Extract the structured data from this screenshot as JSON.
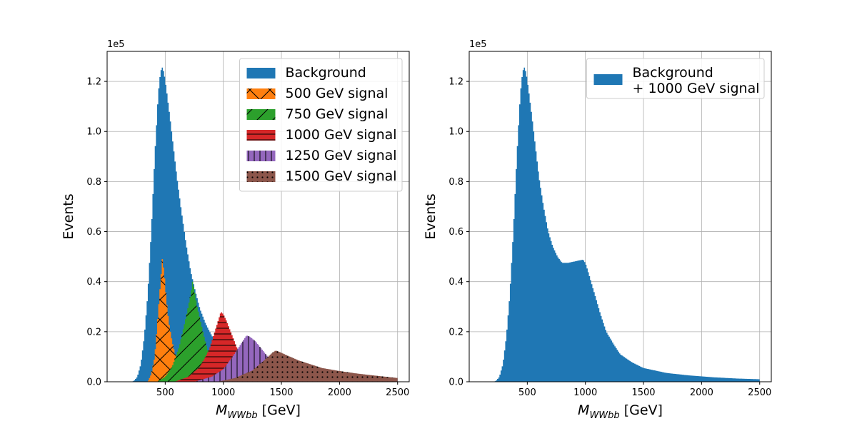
{
  "colors": {
    "background": "#1f77b4",
    "sig500": "#ff7f0e",
    "sig750": "#2ca02c",
    "sig1000": "#d62728",
    "sig1250": "#9467bd",
    "sig1500": "#8c564b",
    "grid": "#b0b0b0"
  },
  "chart_data": [
    {
      "type": "histogram",
      "xlabel_main": "M",
      "xlabel_sub": "WWbb",
      "xlabel_unit": " [GeV]",
      "ylabel": "Events",
      "y_offset_label": "1e5",
      "xlim": [
        0,
        2600
      ],
      "ylim": [
        0,
        132000
      ],
      "xticks": [
        500,
        1000,
        1500,
        2000,
        2500
      ],
      "xtick_labels": [
        "500",
        "1000",
        "1500",
        "2000",
        "2500"
      ],
      "yticks": [
        0,
        20000,
        40000,
        60000,
        80000,
        100000,
        120000
      ],
      "ytick_labels": [
        "0.0",
        "0.2",
        "0.4",
        "0.6",
        "0.8",
        "1.0",
        "1.2"
      ],
      "grid": true,
      "legend_position": "top-right",
      "series": [
        {
          "name": "Background",
          "color": "#1f77b4",
          "hatch": "none",
          "points": [
            [
              200,
              0
            ],
            [
              230,
              300
            ],
            [
              260,
              2000
            ],
            [
              290,
              7000
            ],
            [
              320,
              18000
            ],
            [
              350,
              35000
            ],
            [
              380,
              60000
            ],
            [
              410,
              90000
            ],
            [
              440,
              115000
            ],
            [
              460,
              124000
            ],
            [
              475,
              125500
            ],
            [
              490,
              123500
            ],
            [
              510,
              117000
            ],
            [
              540,
              106000
            ],
            [
              570,
              94000
            ],
            [
              600,
              82000
            ],
            [
              640,
              68000
            ],
            [
              680,
              55000
            ],
            [
              720,
              44000
            ],
            [
              760,
              36000
            ],
            [
              800,
              29000
            ],
            [
              850,
              23000
            ],
            [
              900,
              18500
            ],
            [
              950,
              15000
            ],
            [
              1000,
              12500
            ],
            [
              1100,
              9500
            ],
            [
              1200,
              7500
            ],
            [
              1300,
              6000
            ],
            [
              1400,
              5000
            ],
            [
              1500,
              4200
            ],
            [
              1700,
              3000
            ],
            [
              1900,
              2200
            ],
            [
              2100,
              1700
            ],
            [
              2300,
              1300
            ],
            [
              2500,
              1000
            ]
          ]
        },
        {
          "name": "500 GeV signal",
          "color": "#ff7f0e",
          "hatch": "cross",
          "points": [
            [
              350,
              0
            ],
            [
              380,
              3000
            ],
            [
              410,
              10000
            ],
            [
              440,
              28000
            ],
            [
              460,
              40000
            ],
            [
              475,
              49000
            ],
            [
              490,
              44000
            ],
            [
              510,
              33000
            ],
            [
              530,
              24000
            ],
            [
              560,
              16000
            ],
            [
              600,
              8000
            ],
            [
              640,
              3000
            ],
            [
              680,
              1000
            ],
            [
              720,
              0
            ]
          ]
        },
        {
          "name": "750 GeV signal",
          "color": "#2ca02c",
          "hatch": "diag",
          "points": [
            [
              430,
              0
            ],
            [
              500,
              2000
            ],
            [
              560,
              6000
            ],
            [
              620,
              14000
            ],
            [
              680,
              26000
            ],
            [
              720,
              35000
            ],
            [
              735,
              40000
            ],
            [
              750,
              37000
            ],
            [
              770,
              31000
            ],
            [
              800,
              25000
            ],
            [
              840,
              17000
            ],
            [
              880,
              10000
            ],
            [
              920,
              5000
            ],
            [
              970,
              1500
            ],
            [
              1050,
              0
            ]
          ]
        },
        {
          "name": "1000 GeV signal",
          "color": "#d62728",
          "hatch": "horiz",
          "points": [
            [
              580,
              0
            ],
            [
              700,
              2000
            ],
            [
              800,
              6000
            ],
            [
              880,
              13000
            ],
            [
              940,
              22000
            ],
            [
              980,
              28000
            ],
            [
              1000,
              27000
            ],
            [
              1030,
              24000
            ],
            [
              1080,
              18000
            ],
            [
              1130,
              12000
            ],
            [
              1180,
              7000
            ],
            [
              1250,
              3000
            ],
            [
              1350,
              800
            ],
            [
              1450,
              0
            ]
          ]
        },
        {
          "name": "1250 GeV signal",
          "color": "#9467bd",
          "hatch": "vert",
          "points": [
            [
              750,
              0
            ],
            [
              900,
              2000
            ],
            [
              1000,
              5000
            ],
            [
              1080,
              10000
            ],
            [
              1150,
              15000
            ],
            [
              1200,
              18500
            ],
            [
              1230,
              18000
            ],
            [
              1280,
              16000
            ],
            [
              1340,
              12500
            ],
            [
              1400,
              9000
            ],
            [
              1470,
              6000
            ],
            [
              1550,
              3500
            ],
            [
              1650,
              1500
            ],
            [
              1800,
              300
            ],
            [
              1900,
              0
            ]
          ]
        },
        {
          "name": "1500 GeV signal",
          "color": "#8c564b",
          "hatch": "dots",
          "points": [
            [
              950,
              0
            ],
            [
              1100,
              1500
            ],
            [
              1250,
              4500
            ],
            [
              1350,
              8500
            ],
            [
              1420,
              11500
            ],
            [
              1450,
              12500
            ],
            [
              1480,
              12000
            ],
            [
              1550,
              10500
            ],
            [
              1650,
              8500
            ],
            [
              1750,
              7000
            ],
            [
              1850,
              5500
            ],
            [
              2000,
              4300
            ],
            [
              2150,
              3300
            ],
            [
              2300,
              2500
            ],
            [
              2400,
              2000
            ],
            [
              2500,
              1500
            ]
          ]
        }
      ]
    },
    {
      "type": "histogram",
      "xlabel_main": "M",
      "xlabel_sub": "WWbb",
      "xlabel_unit": " [GeV]",
      "ylabel": "Events",
      "y_offset_label": "1e5",
      "xlim": [
        0,
        2600
      ],
      "ylim": [
        0,
        132000
      ],
      "xticks": [
        500,
        1000,
        1500,
        2000,
        2500
      ],
      "xtick_labels": [
        "500",
        "1000",
        "1500",
        "2000",
        "2500"
      ],
      "yticks": [
        0,
        20000,
        40000,
        60000,
        80000,
        100000,
        120000
      ],
      "ytick_labels": [
        "0.0",
        "0.2",
        "0.4",
        "0.6",
        "0.8",
        "1.0",
        "1.2"
      ],
      "grid": true,
      "legend_position": "top-right",
      "series": [
        {
          "name": "Background\n+ 1000 GeV signal",
          "color": "#1f77b4",
          "hatch": "none",
          "points": [
            [
              200,
              0
            ],
            [
              230,
              300
            ],
            [
              260,
              2000
            ],
            [
              290,
              7000
            ],
            [
              320,
              18000
            ],
            [
              350,
              35000
            ],
            [
              380,
              60000
            ],
            [
              410,
              90000
            ],
            [
              440,
              115000
            ],
            [
              460,
              124000
            ],
            [
              475,
              125500
            ],
            [
              490,
              123500
            ],
            [
              510,
              117000
            ],
            [
              540,
              106000
            ],
            [
              570,
              94000
            ],
            [
              600,
              82000
            ],
            [
              640,
              70000
            ],
            [
              680,
              60000
            ],
            [
              720,
              54000
            ],
            [
              760,
              50000
            ],
            [
              800,
              47500
            ],
            [
              850,
              47500
            ],
            [
              900,
              48000
            ],
            [
              950,
              48500
            ],
            [
              980,
              48800
            ],
            [
              1000,
              47500
            ],
            [
              1030,
              43000
            ],
            [
              1080,
              35000
            ],
            [
              1130,
              27000
            ],
            [
              1180,
              20000
            ],
            [
              1250,
              14500
            ],
            [
              1300,
              11000
            ],
            [
              1400,
              7800
            ],
            [
              1500,
              5500
            ],
            [
              1700,
              3500
            ],
            [
              1900,
              2500
            ],
            [
              2100,
              1800
            ],
            [
              2300,
              1300
            ],
            [
              2500,
              1000
            ]
          ]
        }
      ]
    }
  ]
}
